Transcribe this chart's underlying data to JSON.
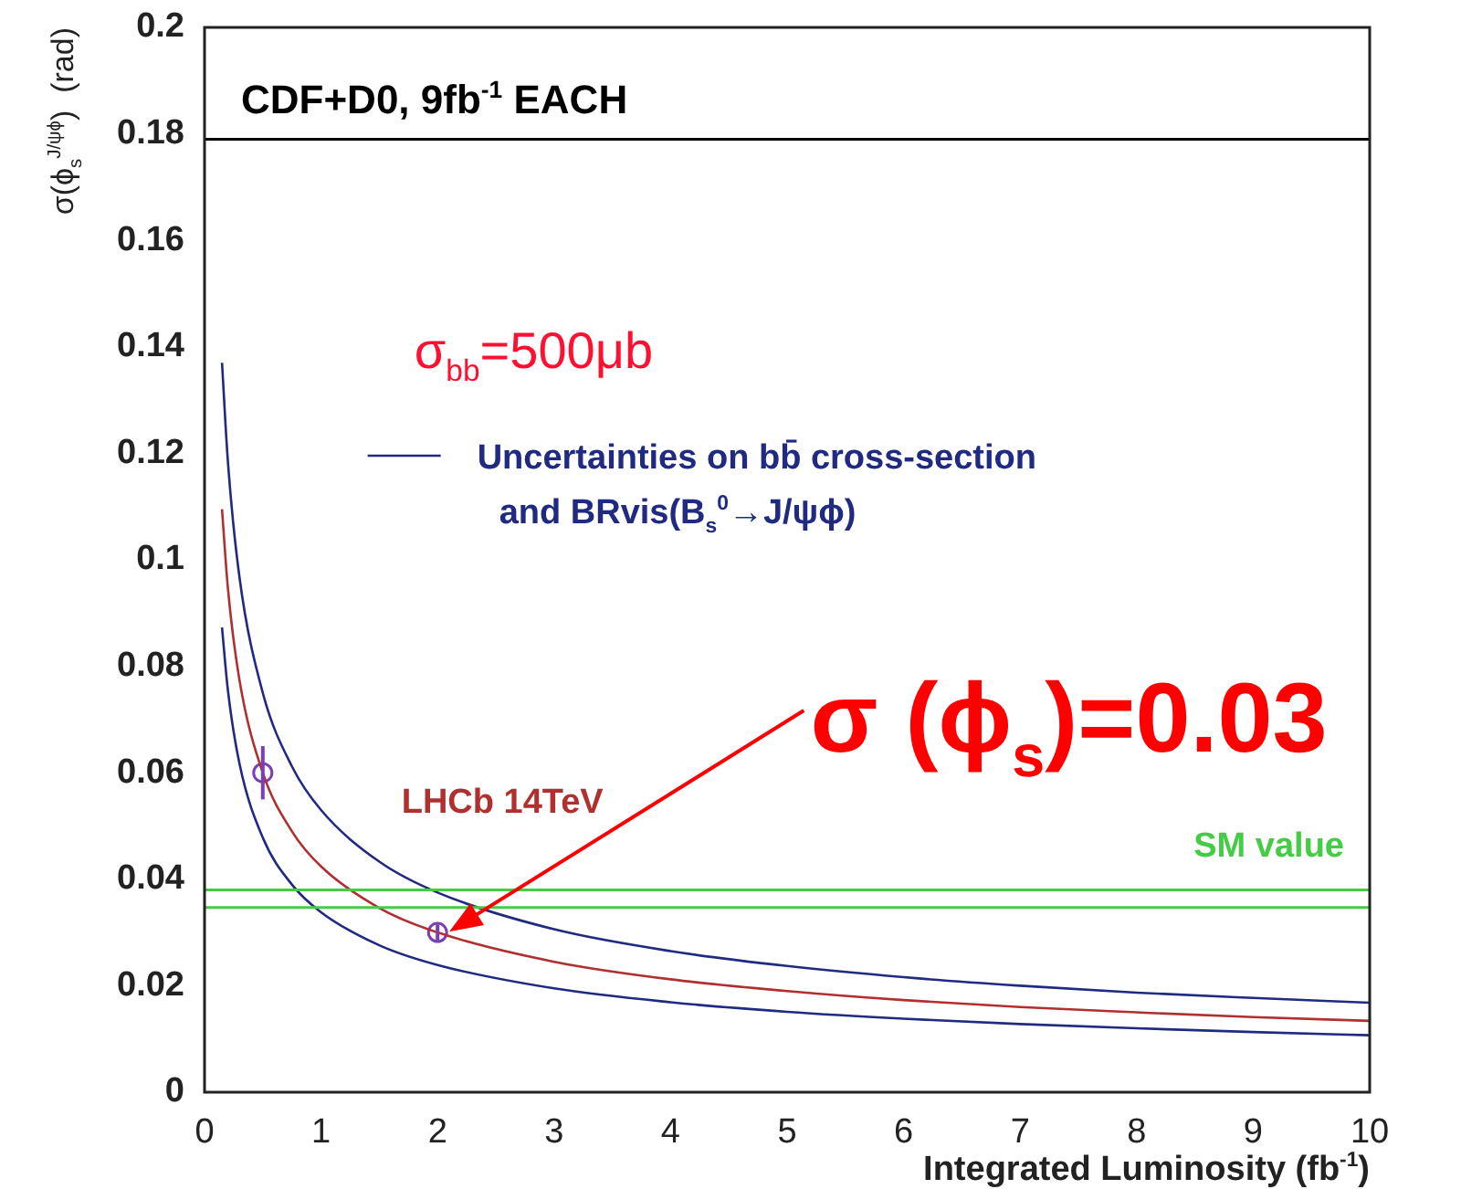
{
  "chart_data": {
    "type": "line",
    "xlabel": "Integrated Luminosity (fb$^{-1}$)",
    "ylabel": "σ(ϕ$_{s}$$^{J/ψϕ}$)  (rad)",
    "xlim": [
      0,
      10
    ],
    "ylim": [
      0,
      0.2
    ],
    "xticks": [
      0,
      1,
      2,
      3,
      4,
      5,
      6,
      7,
      8,
      9,
      10
    ],
    "yticks": [
      0,
      0.02,
      0.04,
      0.06,
      0.08,
      0.1,
      0.12,
      0.14,
      0.16,
      0.18,
      0.2
    ],
    "grid": false,
    "legend": "top left",
    "line_style": "solid",
    "series": [
      {
        "name": "Uncertainties on bb̄ cross-section and BRvis(B$_{s}$$^{0}$→J/ψϕ)",
        "color": "#1f2a80",
        "marker": "none",
        "x": [
          0.15,
          0.2,
          0.3,
          0.5,
          0.75,
          1,
          1.5,
          2,
          3,
          4,
          5,
          6,
          7,
          8,
          9,
          10
        ],
        "values": [
          0.137,
          0.1186,
          0.0967,
          0.075,
          0.0612,
          0.053,
          0.0433,
          0.0375,
          0.0306,
          0.0265,
          0.0237,
          0.0216,
          0.02,
          0.0187,
          0.0177,
          0.0168
        ]
      },
      {
        "name": "LHCb 14TeV",
        "color": "#b03030",
        "marker": "none",
        "x": [
          0.15,
          0.2,
          0.3,
          0.5,
          0.75,
          1,
          1.5,
          2,
          3,
          4,
          5,
          6,
          7,
          8,
          9,
          10
        ],
        "values": [
          0.1095,
          0.0948,
          0.0774,
          0.06,
          0.049,
          0.0424,
          0.0346,
          0.03,
          0.0245,
          0.0212,
          0.019,
          0.0173,
          0.016,
          0.015,
          0.0141,
          0.0134
        ]
      },
      {
        "color": "#1f2a80",
        "marker": "none",
        "x": [
          0.15,
          0.2,
          0.3,
          0.5,
          0.75,
          1,
          1.5,
          2,
          3,
          4,
          5,
          6,
          7,
          8,
          9,
          10
        ],
        "values": [
          0.0873,
          0.0756,
          0.0617,
          0.0478,
          0.039,
          0.0338,
          0.0276,
          0.0239,
          0.0195,
          0.0169,
          0.0151,
          0.0138,
          0.0128,
          0.012,
          0.0113,
          0.0107
        ]
      },
      {
        "type": "scatter",
        "color": "#7a3fb0",
        "marker": "circle",
        "x": [
          0.5,
          2
        ],
        "values": [
          0.06,
          0.03
        ],
        "errors": [
          0.005,
          0.0015
        ]
      }
    ],
    "ref_lines": [
      {
        "axis": "y",
        "value": 0.179,
        "label": "CDF+D0, 9fb$^{-1}$ EACH",
        "color": "#000000"
      },
      {
        "axis": "y",
        "value": 0.038,
        "label": "SM value",
        "color": "#44cc44"
      },
      {
        "axis": "y",
        "value": 0.0347,
        "label": null,
        "color": "#44cc44"
      }
    ],
    "annotations": [
      "σ$_{bb}$=500μb",
      "σ (ϕ$_{s}$)=0.03"
    ]
  }
}
